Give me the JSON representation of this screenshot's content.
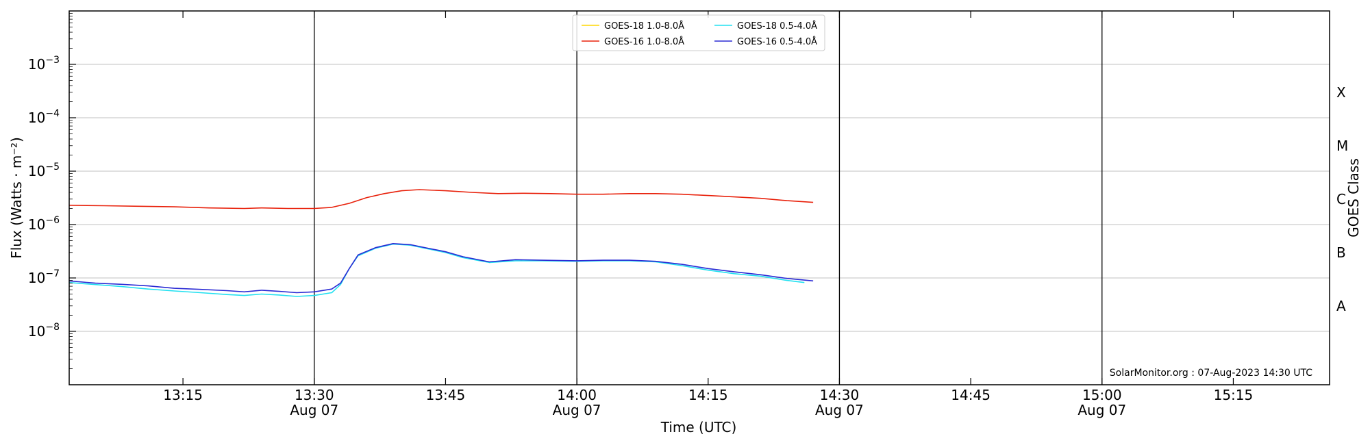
{
  "chart_data": {
    "type": "line",
    "xlabel": "Time (UTC)",
    "ylabel": "Flux (Watts · m⁻²)",
    "right_ylabel": "GOES Class",
    "x_range": [
      "13:02",
      "15:26"
    ],
    "y_range": [
      1e-09,
      0.01
    ],
    "y_scale": "log",
    "grid": "horizontal",
    "legend_placement": "top-center",
    "credit": "SolarMonitor.org : 07-Aug-2023 14:30 UTC",
    "y_ticks": [
      {
        "value": 1e-08,
        "base": "10",
        "exp": "−8"
      },
      {
        "value": 1e-07,
        "base": "10",
        "exp": "−7"
      },
      {
        "value": 1e-06,
        "base": "10",
        "exp": "−6"
      },
      {
        "value": 1e-05,
        "base": "10",
        "exp": "−5"
      },
      {
        "value": 0.0001,
        "base": "10",
        "exp": "−4"
      },
      {
        "value": 0.001,
        "base": "10",
        "exp": "−3"
      }
    ],
    "x_ticks": [
      {
        "time": "13:15",
        "label": "13:15",
        "date": ""
      },
      {
        "time": "13:30",
        "label": "13:30",
        "date": "Aug 07"
      },
      {
        "time": "13:45",
        "label": "13:45",
        "date": ""
      },
      {
        "time": "14:00",
        "label": "14:00",
        "date": "Aug 07"
      },
      {
        "time": "14:15",
        "label": "14:15",
        "date": ""
      },
      {
        "time": "14:30",
        "label": "14:30",
        "date": "Aug 07"
      },
      {
        "time": "14:45",
        "label": "14:45",
        "date": ""
      },
      {
        "time": "15:00",
        "label": "15:00",
        "date": "Aug 07"
      },
      {
        "time": "15:15",
        "label": "15:15",
        "date": ""
      }
    ],
    "class_labels": [
      {
        "label": "A",
        "value": 3e-08
      },
      {
        "label": "B",
        "value": 3e-07
      },
      {
        "label": "C",
        "value": 3e-06
      },
      {
        "label": "M",
        "value": 3e-05
      },
      {
        "label": "X",
        "value": 0.0003
      }
    ],
    "series": [
      {
        "name": "GOES-18 1.0-8.0Å",
        "color": "#ffd700",
        "drawn": false,
        "points": []
      },
      {
        "name": "GOES-16 1.0-8.0Å",
        "color": "#e8200a",
        "drawn": true,
        "points": [
          [
            "13:02",
            2.3e-06
          ],
          [
            "13:06",
            2.25e-06
          ],
          [
            "13:10",
            2.2e-06
          ],
          [
            "13:14",
            2.15e-06
          ],
          [
            "13:18",
            2.05e-06
          ],
          [
            "13:22",
            2e-06
          ],
          [
            "13:24",
            2.05e-06
          ],
          [
            "13:27",
            2e-06
          ],
          [
            "13:30",
            2e-06
          ],
          [
            "13:32",
            2.1e-06
          ],
          [
            "13:34",
            2.5e-06
          ],
          [
            "13:36",
            3.2e-06
          ],
          [
            "13:38",
            3.8e-06
          ],
          [
            "13:40",
            4.3e-06
          ],
          [
            "13:42",
            4.5e-06
          ],
          [
            "13:45",
            4.3e-06
          ],
          [
            "13:48",
            4e-06
          ],
          [
            "13:51",
            3.8e-06
          ],
          [
            "13:54",
            3.85e-06
          ],
          [
            "13:57",
            3.8e-06
          ],
          [
            "14:00",
            3.7e-06
          ],
          [
            "14:03",
            3.7e-06
          ],
          [
            "14:06",
            3.8e-06
          ],
          [
            "14:09",
            3.8e-06
          ],
          [
            "14:12",
            3.7e-06
          ],
          [
            "14:15",
            3.5e-06
          ],
          [
            "14:18",
            3.3e-06
          ],
          [
            "14:21",
            3.1e-06
          ],
          [
            "14:24",
            2.8e-06
          ],
          [
            "14:27",
            2.6e-06
          ]
        ]
      },
      {
        "name": "GOES-18 0.5-4.0Å",
        "color": "#22e0f0",
        "drawn": true,
        "points": [
          [
            "13:02",
            8.2e-08
          ],
          [
            "13:05",
            7.5e-08
          ],
          [
            "13:08",
            6.9e-08
          ],
          [
            "13:11",
            6.2e-08
          ],
          [
            "13:14",
            5.7e-08
          ],
          [
            "13:17",
            5.3e-08
          ],
          [
            "13:20",
            4.9e-08
          ],
          [
            "13:22",
            4.7e-08
          ],
          [
            "13:24",
            5e-08
          ],
          [
            "13:26",
            4.8e-08
          ],
          [
            "13:28",
            4.5e-08
          ],
          [
            "13:30",
            4.7e-08
          ],
          [
            "13:32",
            5.3e-08
          ],
          [
            "13:33",
            7.5e-08
          ],
          [
            "13:34",
            1.5e-07
          ],
          [
            "13:35",
            2.6e-07
          ],
          [
            "13:37",
            3.6e-07
          ],
          [
            "13:39",
            4.3e-07
          ],
          [
            "13:41",
            4.1e-07
          ],
          [
            "13:43",
            3.5e-07
          ],
          [
            "13:45",
            3e-07
          ],
          [
            "13:47",
            2.4e-07
          ],
          [
            "13:50",
            1.95e-07
          ],
          [
            "13:53",
            2.1e-07
          ],
          [
            "13:56",
            2.1e-07
          ],
          [
            "14:00",
            2.05e-07
          ],
          [
            "14:03",
            2.1e-07
          ],
          [
            "14:06",
            2.1e-07
          ],
          [
            "14:09",
            2e-07
          ],
          [
            "14:12",
            1.7e-07
          ],
          [
            "14:15",
            1.4e-07
          ],
          [
            "14:18",
            1.2e-07
          ],
          [
            "14:21",
            1.08e-07
          ],
          [
            "14:24",
            9e-08
          ],
          [
            "14:26",
            8.2e-08
          ]
        ]
      },
      {
        "name": "GOES-16 0.5-4.0Å",
        "color": "#2a2ad4",
        "drawn": true,
        "points": [
          [
            "13:02",
            8.8e-08
          ],
          [
            "13:05",
            8e-08
          ],
          [
            "13:08",
            7.6e-08
          ],
          [
            "13:11",
            7.1e-08
          ],
          [
            "13:14",
            6.4e-08
          ],
          [
            "13:17",
            6.1e-08
          ],
          [
            "13:20",
            5.8e-08
          ],
          [
            "13:22",
            5.5e-08
          ],
          [
            "13:24",
            5.9e-08
          ],
          [
            "13:26",
            5.6e-08
          ],
          [
            "13:28",
            5.3e-08
          ],
          [
            "13:30",
            5.5e-08
          ],
          [
            "13:32",
            6.2e-08
          ],
          [
            "13:33",
            8e-08
          ],
          [
            "13:34",
            1.5e-07
          ],
          [
            "13:35",
            2.7e-07
          ],
          [
            "13:37",
            3.7e-07
          ],
          [
            "13:39",
            4.4e-07
          ],
          [
            "13:41",
            4.2e-07
          ],
          [
            "13:43",
            3.6e-07
          ],
          [
            "13:45",
            3.1e-07
          ],
          [
            "13:47",
            2.5e-07
          ],
          [
            "13:50",
            2e-07
          ],
          [
            "13:53",
            2.2e-07
          ],
          [
            "13:56",
            2.15e-07
          ],
          [
            "14:00",
            2.1e-07
          ],
          [
            "14:03",
            2.15e-07
          ],
          [
            "14:06",
            2.15e-07
          ],
          [
            "14:09",
            2.05e-07
          ],
          [
            "14:12",
            1.8e-07
          ],
          [
            "14:15",
            1.5e-07
          ],
          [
            "14:18",
            1.3e-07
          ],
          [
            "14:21",
            1.15e-07
          ],
          [
            "14:24",
            9.8e-08
          ],
          [
            "14:27",
            8.8e-08
          ]
        ]
      }
    ]
  }
}
